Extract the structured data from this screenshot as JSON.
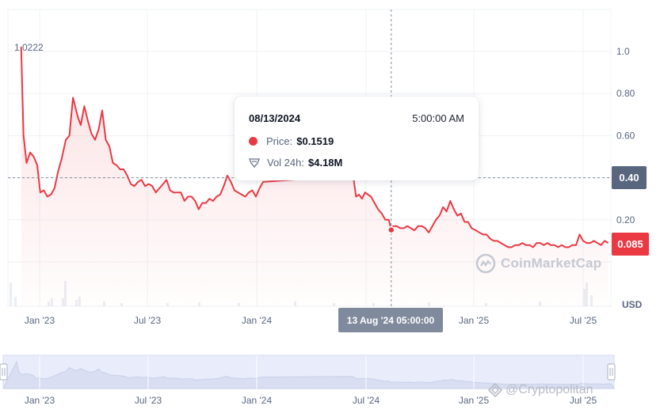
{
  "chart_data": {
    "type": "area",
    "title": "",
    "xlabel": "",
    "ylabel": "USD",
    "currency_unit": "USD",
    "ylim": [
      0,
      1.2
    ],
    "y_ticks": [
      "1.0",
      "0.80",
      "0.60",
      "0.20"
    ],
    "x_ticks": [
      "Jan '23",
      "Jul '23",
      "Jan '24",
      "Jan '25",
      "Jul '25"
    ],
    "navigator_ticks": [
      "Jan '23",
      "Jul '23",
      "Jan '24",
      "Jul '24",
      "Jan '25",
      "Jul '25"
    ],
    "max_label": "1.0222",
    "current_price_label": "0.085",
    "crosshair_price_label": "0.40",
    "crosshair_time_label": "13 Aug '24 05:00:00",
    "series": [
      {
        "values": [
          [
            "2022-12-01",
            1.0222
          ],
          [
            "2022-12-05",
            0.6
          ],
          [
            "2022-12-10",
            0.47
          ],
          [
            "2022-12-16",
            0.52
          ],
          [
            "2022-12-22",
            0.5
          ],
          [
            "2022-12-28",
            0.46
          ],
          [
            "2023-01-02",
            0.33
          ],
          [
            "2023-01-08",
            0.34
          ],
          [
            "2023-01-14",
            0.31
          ],
          [
            "2023-01-20",
            0.32
          ],
          [
            "2023-01-26",
            0.35
          ],
          [
            "2023-02-01",
            0.43
          ],
          [
            "2023-02-07",
            0.49
          ],
          [
            "2023-02-14",
            0.58
          ],
          [
            "2023-02-20",
            0.6
          ],
          [
            "2023-02-26",
            0.78
          ],
          [
            "2023-03-06",
            0.69
          ],
          [
            "2023-03-11",
            0.65
          ],
          [
            "2023-03-17",
            0.74
          ],
          [
            "2023-03-23",
            0.67
          ],
          [
            "2023-03-29",
            0.61
          ],
          [
            "2023-04-04",
            0.58
          ],
          [
            "2023-04-10",
            0.63
          ],
          [
            "2023-04-16",
            0.72
          ],
          [
            "2023-04-22",
            0.58
          ],
          [
            "2023-04-28",
            0.55
          ],
          [
            "2023-05-04",
            0.47
          ],
          [
            "2023-05-10",
            0.46
          ],
          [
            "2023-05-16",
            0.44
          ],
          [
            "2023-05-22",
            0.44
          ],
          [
            "2023-05-28",
            0.41
          ],
          [
            "2023-06-03",
            0.37
          ],
          [
            "2023-06-09",
            0.36
          ],
          [
            "2023-06-15",
            0.38
          ],
          [
            "2023-06-21",
            0.39
          ],
          [
            "2023-06-27",
            0.36
          ],
          [
            "2023-07-03",
            0.37
          ],
          [
            "2023-07-09",
            0.36
          ],
          [
            "2023-07-15",
            0.33
          ],
          [
            "2023-07-21",
            0.35
          ],
          [
            "2023-07-27",
            0.37
          ],
          [
            "2023-08-02",
            0.39
          ],
          [
            "2023-08-08",
            0.34
          ],
          [
            "2023-08-14",
            0.33
          ],
          [
            "2023-08-20",
            0.33
          ],
          [
            "2023-08-26",
            0.33
          ],
          [
            "2023-09-01",
            0.29
          ],
          [
            "2023-09-07",
            0.31
          ],
          [
            "2023-09-13",
            0.31
          ],
          [
            "2023-09-19",
            0.29
          ],
          [
            "2023-09-25",
            0.25
          ],
          [
            "2023-10-01",
            0.28
          ],
          [
            "2023-10-07",
            0.28
          ],
          [
            "2023-10-13",
            0.3
          ],
          [
            "2023-10-19",
            0.29
          ],
          [
            "2023-10-25",
            0.31
          ],
          [
            "2023-10-31",
            0.32
          ],
          [
            "2023-11-06",
            0.36
          ],
          [
            "2023-11-12",
            0.41
          ],
          [
            "2023-11-18",
            0.38
          ],
          [
            "2023-11-24",
            0.34
          ],
          [
            "2023-11-30",
            0.33
          ],
          [
            "2023-12-06",
            0.32
          ],
          [
            "2023-12-12",
            0.31
          ],
          [
            "2023-12-18",
            0.33
          ],
          [
            "2023-12-24",
            0.34
          ],
          [
            "2023-12-30",
            0.31
          ],
          [
            "2024-01-05",
            0.35
          ],
          [
            "2024-01-11",
            0.38
          ],
          [
            "2024-06-10",
            0.41
          ],
          [
            "2024-06-15",
            0.31
          ],
          [
            "2024-06-20",
            0.32
          ],
          [
            "2024-06-25",
            0.3
          ],
          [
            "2024-06-30",
            0.33
          ],
          [
            "2024-07-05",
            0.32
          ],
          [
            "2024-07-10",
            0.31
          ],
          [
            "2024-07-16",
            0.28
          ],
          [
            "2024-07-22",
            0.25
          ],
          [
            "2024-07-28",
            0.23
          ],
          [
            "2024-08-03",
            0.2
          ],
          [
            "2024-08-09",
            0.2
          ],
          [
            "2024-08-13",
            0.1519
          ],
          [
            "2024-08-16",
            0.17
          ],
          [
            "2024-08-22",
            0.17
          ],
          [
            "2024-08-28",
            0.16
          ],
          [
            "2024-09-03",
            0.16
          ],
          [
            "2024-09-09",
            0.17
          ],
          [
            "2024-09-15",
            0.16
          ],
          [
            "2024-09-21",
            0.15
          ],
          [
            "2024-09-27",
            0.17
          ],
          [
            "2024-10-03",
            0.17
          ],
          [
            "2024-10-09",
            0.16
          ],
          [
            "2024-10-15",
            0.14
          ],
          [
            "2024-10-21",
            0.17
          ],
          [
            "2024-10-27",
            0.2
          ],
          [
            "2024-11-02",
            0.22
          ],
          [
            "2024-11-08",
            0.26
          ],
          [
            "2024-11-14",
            0.24
          ],
          [
            "2024-11-20",
            0.29
          ],
          [
            "2024-11-26",
            0.25
          ],
          [
            "2024-12-02",
            0.22
          ],
          [
            "2024-12-08",
            0.23
          ],
          [
            "2024-12-14",
            0.19
          ],
          [
            "2024-12-20",
            0.19
          ],
          [
            "2024-12-26",
            0.16
          ],
          [
            "2025-01-02",
            0.15
          ],
          [
            "2025-01-08",
            0.14
          ],
          [
            "2025-01-14",
            0.13
          ],
          [
            "2025-01-20",
            0.13
          ],
          [
            "2025-01-26",
            0.11
          ],
          [
            "2025-02-01",
            0.1
          ],
          [
            "2025-02-07",
            0.1
          ],
          [
            "2025-02-13",
            0.09
          ],
          [
            "2025-02-19",
            0.08
          ],
          [
            "2025-02-25",
            0.07
          ],
          [
            "2025-03-03",
            0.07
          ],
          [
            "2025-03-09",
            0.08
          ],
          [
            "2025-03-15",
            0.08
          ],
          [
            "2025-03-21",
            0.09
          ],
          [
            "2025-03-27",
            0.08
          ],
          [
            "2025-04-02",
            0.08
          ],
          [
            "2025-04-08",
            0.07
          ],
          [
            "2025-04-14",
            0.09
          ],
          [
            "2025-04-20",
            0.09
          ],
          [
            "2025-04-26",
            0.08
          ],
          [
            "2025-05-02",
            0.09
          ],
          [
            "2025-05-08",
            0.08
          ],
          [
            "2025-05-14",
            0.08
          ],
          [
            "2025-05-20",
            0.07
          ],
          [
            "2025-05-26",
            0.08
          ],
          [
            "2025-06-01",
            0.07
          ],
          [
            "2025-06-07",
            0.07
          ],
          [
            "2025-06-13",
            0.08
          ],
          [
            "2025-06-19",
            0.08
          ],
          [
            "2025-06-25",
            0.13
          ],
          [
            "2025-07-01",
            0.1
          ],
          [
            "2025-07-07",
            0.09
          ],
          [
            "2025-07-13",
            0.09
          ],
          [
            "2025-07-19",
            0.1
          ],
          [
            "2025-07-25",
            0.09
          ],
          [
            "2025-07-31",
            0.08
          ],
          [
            "2025-08-06",
            0.1
          ],
          [
            "2025-08-12",
            0.09
          ]
        ]
      }
    ],
    "highlight": {
      "date": "2024-08-13",
      "value": 0.1519
    },
    "grid": true,
    "legend": "none"
  },
  "tooltip": {
    "date": "08/13/2024",
    "time": "5:00:00 AM",
    "price_label": "Price:",
    "price_value": "$0.1519",
    "volume_label": "Vol 24h:",
    "volume_value": "$4.18M"
  },
  "watermark": {
    "text": "CoinMarketCap",
    "icon": "coinmarketcap-logo-icon"
  },
  "overlay_brand": {
    "text": "@Cryptopolitan",
    "icon": "cryptopolitan-logo-icon"
  },
  "colors": {
    "line": "#ea3943",
    "area_top": "#ea3943",
    "grid": "#eff2f5",
    "axis_text": "#58667e",
    "navigator_fill": "#e8ecfb",
    "navigator_line": "#c8cfe8"
  }
}
